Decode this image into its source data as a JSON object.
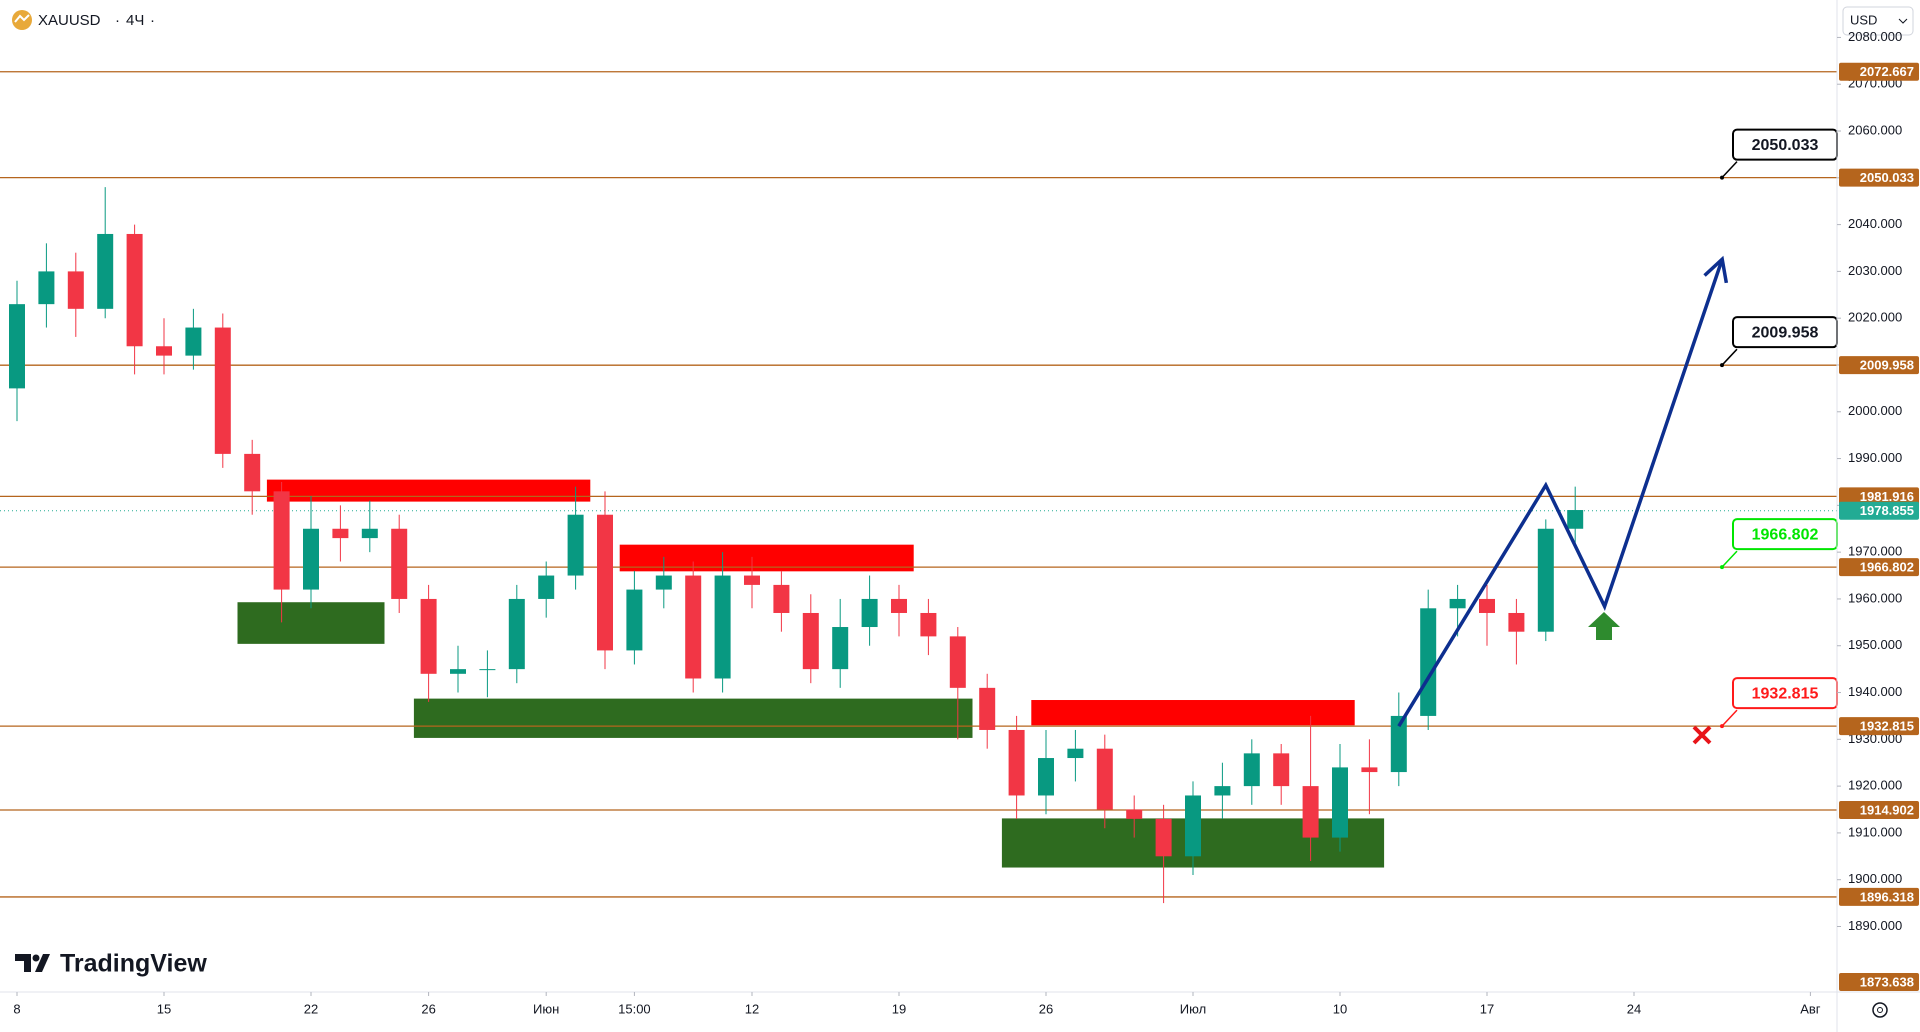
{
  "header": {
    "symbol": "XAUUSD",
    "interval": "4Ч",
    "currency": "USD",
    "brand": "TradingView"
  },
  "chart_data": {
    "type": "candlestick",
    "categories": [
      "05-08",
      "05-09",
      "05-10",
      "05-11",
      "05-12",
      "05-15",
      "05-16",
      "05-17",
      "05-18",
      "05-19",
      "05-22",
      "05-23",
      "05-24",
      "05-25",
      "05-26",
      "05-29",
      "05-30",
      "05-31",
      "06-01",
      "06-02",
      "06-05",
      "06-06",
      "06-07",
      "06-08",
      "06-09",
      "06-12",
      "06-13",
      "06-14",
      "06-15",
      "06-16",
      "06-19",
      "06-20",
      "06-21",
      "06-22",
      "06-23",
      "06-26",
      "06-27",
      "06-28",
      "06-29",
      "06-30",
      "07-03",
      "07-04",
      "07-05",
      "07-06",
      "07-07",
      "07-10",
      "07-11",
      "07-12",
      "07-13",
      "07-14",
      "07-17",
      "07-18",
      "07-19",
      "07-20",
      "07-21",
      "07-24",
      "07-25",
      "07-26",
      "07-27",
      "07-28",
      "07-31",
      "08-01"
    ],
    "open": [
      2005,
      2023,
      2030,
      2022,
      2038,
      2014,
      2012,
      2018,
      1991,
      1983,
      1962,
      1975,
      1973,
      1975,
      1960,
      1944,
      1945,
      1945,
      1960,
      1965,
      1978,
      1949,
      1962,
      1965,
      1943,
      1965,
      1963,
      1957,
      1945,
      1954,
      1960,
      1957,
      1952,
      1941,
      1932,
      1918,
      1926,
      1928,
      1915,
      1913,
      1905,
      1918,
      1920,
      1927,
      1920,
      1909,
      1924,
      1923,
      1935,
      1958,
      1960,
      1957,
      1953,
      1975,
      null,
      null,
      null,
      null,
      null,
      null,
      null,
      null
    ],
    "high": [
      2028,
      2036,
      2034,
      2048,
      2040,
      2020,
      2022,
      2021,
      1994,
      1985,
      1982,
      1980,
      1981,
      1978,
      1963,
      1950,
      1949,
      1963,
      1968,
      1984,
      1983,
      1966,
      1969,
      1968,
      1970,
      1969,
      1966,
      1961,
      1960,
      1965,
      1963,
      1960,
      1954,
      1944,
      1935,
      1932,
      1932,
      1931,
      1918,
      1916,
      1921,
      1925,
      1930,
      1929,
      1935,
      1929,
      1930,
      1940,
      1962,
      1963,
      1963,
      1960,
      1977,
      1984,
      null,
      null,
      null,
      null,
      null,
      null,
      null,
      null
    ],
    "low": [
      1998,
      2018,
      2016,
      2020,
      2008,
      2008,
      2009,
      1988,
      1978,
      1955,
      1958,
      1968,
      1970,
      1957,
      1938,
      1940,
      1939,
      1942,
      1956,
      1962,
      1945,
      1946,
      1958,
      1940,
      1940,
      1958,
      1953,
      1942,
      1941,
      1950,
      1952,
      1948,
      1930,
      1928,
      1913,
      1914,
      1921,
      1911,
      1909,
      1895,
      1901,
      1913,
      1916,
      1916,
      1904,
      1906,
      1914,
      1920,
      1932,
      1952,
      1950,
      1946,
      1951,
      1972,
      null,
      null,
      null,
      null,
      null,
      null,
      null,
      null
    ],
    "close": [
      2023,
      2030,
      2022,
      2038,
      2014,
      2012,
      2018,
      1991,
      1983,
      1962,
      1975,
      1973,
      1975,
      1960,
      1944,
      1945,
      1945,
      1960,
      1965,
      1978,
      1949,
      1962,
      1965,
      1943,
      1965,
      1963,
      1957,
      1945,
      1954,
      1960,
      1957,
      1952,
      1941,
      1932,
      1918,
      1926,
      1928,
      1915,
      1913,
      1905,
      1918,
      1920,
      1927,
      1920,
      1909,
      1924,
      1923,
      1935,
      1958,
      1960,
      1957,
      1953,
      1975,
      1979,
      null,
      null,
      null,
      null,
      null,
      null,
      null,
      null
    ],
    "up_color": "#089981",
    "down_color": "#f23645",
    "ylim": [
      1876,
      2088
    ],
    "yticks": [
      {
        "value": 1890,
        "label": "1890.000"
      },
      {
        "value": 1900,
        "label": "1900.000"
      },
      {
        "value": 1910,
        "label": "1910.000"
      },
      {
        "value": 1920,
        "label": "1920.000"
      },
      {
        "value": 1930,
        "label": "1930.000"
      },
      {
        "value": 1940,
        "label": "1940.000"
      },
      {
        "value": 1950,
        "label": "1950.000"
      },
      {
        "value": 1960,
        "label": "1960.000"
      },
      {
        "value": 1970,
        "label": "1970.000"
      },
      {
        "value": 1980,
        "label": "1980.000"
      },
      {
        "value": 1990,
        "label": "1990.000"
      },
      {
        "value": 2000,
        "label": "2000.000"
      },
      {
        "value": 2010,
        "label": "2010.000"
      },
      {
        "value": 2020,
        "label": "2020.000"
      },
      {
        "value": 2030,
        "label": "2030.000"
      },
      {
        "value": 2040,
        "label": "2040.000"
      },
      {
        "value": 2050,
        "label": "2050.000"
      },
      {
        "value": 2060,
        "label": "2060.000"
      },
      {
        "value": 2070,
        "label": "2070.000"
      },
      {
        "value": 2080,
        "label": "2080.000"
      }
    ],
    "xticks": [
      {
        "value": "05-08",
        "label": "8"
      },
      {
        "value": "05-15",
        "label": "15"
      },
      {
        "value": "05-22",
        "label": "22"
      },
      {
        "value": "05-26",
        "label": "26"
      },
      {
        "value": "06-01",
        "label": "Июн"
      },
      {
        "value": "06-06",
        "label": "15:00"
      },
      {
        "value": "06-12",
        "label": "12"
      },
      {
        "value": "06-19",
        "label": "19"
      },
      {
        "value": "06-26",
        "label": "26"
      },
      {
        "value": "07-03",
        "label": "Июл"
      },
      {
        "value": "07-10",
        "label": "10"
      },
      {
        "value": "07-17",
        "label": "17"
      },
      {
        "value": "07-24",
        "label": "24"
      },
      {
        "value": "08-01",
        "label": "Авг"
      }
    ],
    "grid": false,
    "level_color": "#b5651d",
    "levels": [
      {
        "value": 2072.667
      },
      {
        "value": 2050.033,
        "callout": "#000000"
      },
      {
        "value": 2009.958,
        "callout": "#000000"
      },
      {
        "value": 1981.916
      },
      {
        "value": 1966.802,
        "callout": "#00e600"
      },
      {
        "value": 1932.815,
        "callout": "#ff1a1a"
      },
      {
        "value": 1914.902
      },
      {
        "value": 1896.318
      }
    ],
    "current_price": 1978.855,
    "current_color": "#22ab94",
    "bottom_tag": 1873.638,
    "zones": [
      {
        "start": "05-19",
        "end": "06-02",
        "top": 1985.5,
        "bottom": 1980.8,
        "color": "#ff0000"
      },
      {
        "start": "06-06",
        "end": "06-19",
        "top": 1971.6,
        "bottom": 1965.9,
        "color": "#ff0000"
      },
      {
        "start": "06-26",
        "end": "07-10",
        "top": 1938.4,
        "bottom": 1933.0,
        "color": "#ff0000"
      },
      {
        "start": "05-18",
        "end": "05-24",
        "top": 1959.3,
        "bottom": 1950.4,
        "color": "#2e6b1f"
      },
      {
        "start": "05-26",
        "end": "06-21",
        "top": 1938.7,
        "bottom": 1930.3,
        "color": "#2e6b1f"
      },
      {
        "start": "06-23",
        "end": "07-11",
        "top": 1913.1,
        "bottom": 1902.6,
        "color": "#2e6b1f"
      }
    ],
    "projection": {
      "x": [
        "07-12",
        "07-19",
        "07-21",
        "07-27"
      ],
      "values": [
        1932.8,
        1984.3,
        1958.4,
        2032.6
      ],
      "color": "#0d2f8f"
    }
  }
}
